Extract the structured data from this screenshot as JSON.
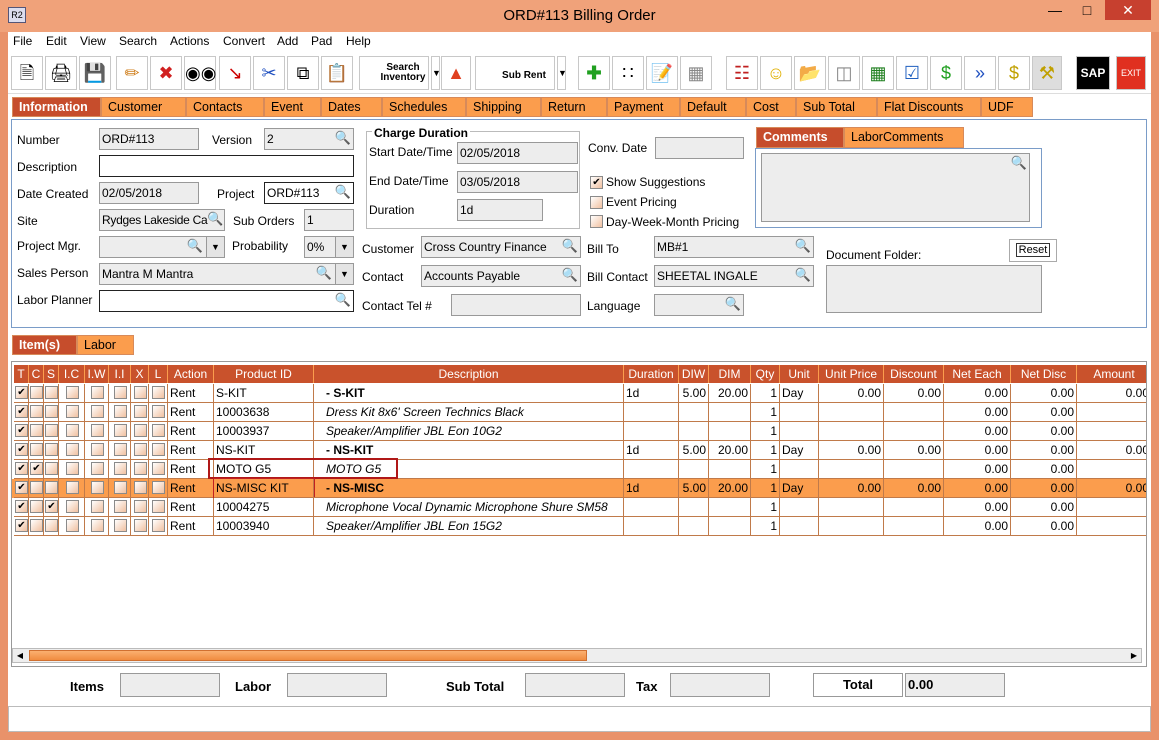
{
  "window": {
    "title": "ORD#113 Billing Order",
    "app_icon": "R2"
  },
  "menu": [
    "File",
    "Edit",
    "View",
    "Search",
    "Actions",
    "Convert",
    "Add",
    "Pad",
    "Help"
  ],
  "toolbar": {
    "search_inventory": "Search Inventory",
    "sub_rent": "Sub Rent",
    "sap": "SAP",
    "exit": "EXIT"
  },
  "tabs": [
    "Information",
    "Customer",
    "Contacts",
    "Event",
    "Dates",
    "Schedules",
    "Shipping",
    "Return",
    "Payment",
    "Default",
    "Cost",
    "Sub Total",
    "Flat Discounts",
    "UDF"
  ],
  "form": {
    "number_label": "Number",
    "number": "ORD#113",
    "version_label": "Version",
    "version": "2",
    "description_label": "Description",
    "description": "",
    "date_created_label": "Date Created",
    "date_created": "02/05/2018",
    "project_label": "Project",
    "project": "ORD#113",
    "site_label": "Site",
    "site": "Rydges Lakeside Can",
    "sub_orders_label": "Sub Orders",
    "sub_orders": "1",
    "project_mgr_label": "Project Mgr.",
    "project_mgr": "",
    "probability_label": "Probability",
    "probability": "0%",
    "sales_person_label": "Sales Person",
    "sales_person": "Mantra M Mantra",
    "labor_planner_label": "Labor Planner",
    "labor_planner": "",
    "charge_duration": "Charge Duration",
    "start_label": "Start Date/Time",
    "start": "02/05/2018",
    "end_label": "End Date/Time",
    "end": "03/05/2018",
    "duration_label": "Duration",
    "duration": "1d",
    "conv_date_label": "Conv. Date",
    "conv_date": "",
    "show_suggestions": "Show Suggestions",
    "show_suggestions_checked": true,
    "event_pricing": "Event Pricing",
    "event_pricing_checked": false,
    "dwm_pricing": "Day-Week-Month Pricing",
    "dwm_pricing_checked": false,
    "customer_label": "Customer",
    "customer": "Cross Country Finance",
    "contact_label": "Contact",
    "contact": "Accounts Payable",
    "contact_tel_label": "Contact Tel #",
    "contact_tel": "",
    "bill_to_label": "Bill To",
    "bill_to": "MB#1",
    "bill_contact_label": "Bill Contact",
    "bill_contact": "SHEETAL INGALE",
    "language_label": "Language",
    "language": "",
    "comments_tab": "Comments",
    "labor_comments_tab": "LaborComments",
    "document_folder_label": "Document Folder:",
    "reset": "Reset"
  },
  "item_tabs": [
    "Item(s)",
    "Labor"
  ],
  "grid": {
    "columns": [
      "T",
      "C",
      "S",
      "I.C",
      "I.W",
      "I.I",
      "X",
      "L",
      "Action",
      "Product ID",
      "Description",
      "Duration",
      "DIW",
      "DIM",
      "Qty",
      "Unit",
      "Unit Price",
      "Discount",
      "Net Each",
      "Net Disc",
      "Amount"
    ],
    "rows": [
      {
        "checks": [
          1,
          0,
          0,
          0,
          0,
          0,
          0,
          0
        ],
        "action": "Rent",
        "product_id": "S-KIT",
        "description": "-  S-KIT",
        "style": "bold",
        "duration": "1d",
        "diw": "5.00",
        "dim": "20.00",
        "qty": "1",
        "unit": "Day",
        "unit_price": "0.00",
        "discount": "0.00",
        "net_each": "0.00",
        "net_disc": "0.00",
        "amount": "0.00"
      },
      {
        "checks": [
          1,
          0,
          0,
          0,
          0,
          0,
          0,
          0
        ],
        "action": "Rent",
        "product_id": "10003638",
        "description": "Dress Kit 8x6' Screen Technics Black",
        "style": "italic",
        "duration": "",
        "diw": "",
        "dim": "",
        "qty": "1",
        "unit": "",
        "unit_price": "",
        "discount": "",
        "net_each": "0.00",
        "net_disc": "0.00",
        "amount": ""
      },
      {
        "checks": [
          1,
          0,
          0,
          0,
          0,
          0,
          0,
          0
        ],
        "action": "Rent",
        "product_id": "10003937",
        "description": "Speaker/Amplifier JBL Eon 10G2",
        "style": "italic",
        "duration": "",
        "diw": "",
        "dim": "",
        "qty": "1",
        "unit": "",
        "unit_price": "",
        "discount": "",
        "net_each": "0.00",
        "net_disc": "0.00",
        "amount": ""
      },
      {
        "checks": [
          1,
          0,
          0,
          0,
          0,
          0,
          0,
          0
        ],
        "action": "Rent",
        "product_id": "NS-KIT",
        "description": "-  NS-KIT",
        "style": "bold",
        "duration": "1d",
        "diw": "5.00",
        "dim": "20.00",
        "qty": "1",
        "unit": "Day",
        "unit_price": "0.00",
        "discount": "0.00",
        "net_each": "0.00",
        "net_disc": "0.00",
        "amount": "0.00"
      },
      {
        "checks": [
          1,
          1,
          0,
          0,
          0,
          0,
          0,
          0
        ],
        "action": "Rent",
        "product_id": "MOTO G5",
        "description": "MOTO G5",
        "style": "italic",
        "duration": "",
        "diw": "",
        "dim": "",
        "qty": "1",
        "unit": "",
        "unit_price": "",
        "discount": "",
        "net_each": "0.00",
        "net_disc": "0.00",
        "amount": "",
        "highlighted": true
      },
      {
        "checks": [
          1,
          0,
          0,
          0,
          0,
          0,
          0,
          0
        ],
        "action": "Rent",
        "product_id": "NS-MISC KIT",
        "description": "-  NS-MISC",
        "style": "bold",
        "duration": "1d",
        "diw": "5.00",
        "dim": "20.00",
        "qty": "1",
        "unit": "Day",
        "unit_price": "0.00",
        "discount": "0.00",
        "net_each": "0.00",
        "net_disc": "0.00",
        "amount": "0.00",
        "selected": true
      },
      {
        "checks": [
          1,
          0,
          1,
          0,
          0,
          0,
          0,
          0
        ],
        "action": "Rent",
        "product_id": "10004275",
        "description": "Microphone Vocal Dynamic Microphone Shure SM58",
        "style": "italic",
        "duration": "",
        "diw": "",
        "dim": "",
        "qty": "1",
        "unit": "",
        "unit_price": "",
        "discount": "",
        "net_each": "0.00",
        "net_disc": "0.00",
        "amount": ""
      },
      {
        "checks": [
          1,
          0,
          0,
          0,
          0,
          0,
          0,
          0
        ],
        "action": "Rent",
        "product_id": "10003940",
        "description": "Speaker/Amplifier JBL Eon 15G2",
        "style": "italic",
        "duration": "",
        "diw": "",
        "dim": "",
        "qty": "1",
        "unit": "",
        "unit_price": "",
        "discount": "",
        "net_each": "0.00",
        "net_disc": "0.00",
        "amount": ""
      }
    ]
  },
  "footer": {
    "items_label": "Items",
    "items": "",
    "labor_label": "Labor",
    "labor": "",
    "sub_total_label": "Sub Total",
    "sub_total": "",
    "tax_label": "Tax",
    "tax": "",
    "total_label": "Total",
    "total": "0.00"
  },
  "colors": {
    "header": "#c9522c",
    "tab": "#fb9d4d",
    "active_tab": "#c64d2c",
    "selected_row": "#fb9d4d",
    "frame": "#e9926a"
  }
}
